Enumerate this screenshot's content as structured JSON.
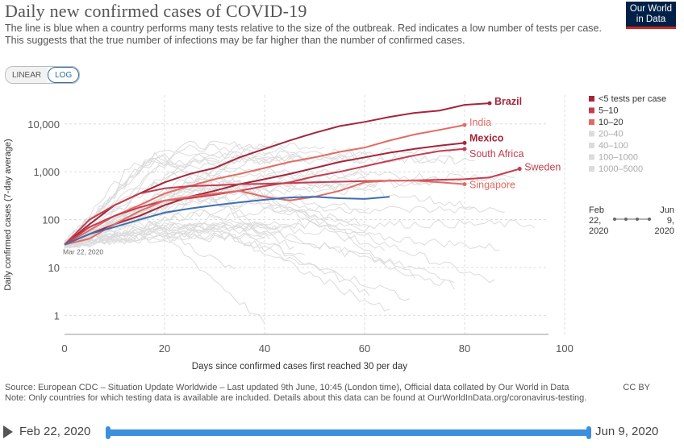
{
  "title": "Daily new confirmed cases of COVID-19",
  "subtitle": "The line is blue when a country performs many tests relative to the size of the outbreak. Red indicates a low number of tests per case. This suggests that the true number of infections may be far higher than the number of confirmed cases.",
  "logo": {
    "line1": "Our World",
    "line2": "in Data"
  },
  "scale_toggle": {
    "linear": "LINEAR",
    "log": "LOG",
    "selected": "LOG"
  },
  "colors": {
    "lt5": "#a3263a",
    "5to10": "#c43d4e",
    "10to20": "#e36a63",
    "grey": "#dcdcdc",
    "blue": "#3e6fb0"
  },
  "chart_data": {
    "type": "line",
    "xlabel": "Days since confirmed cases first reached 30 per day",
    "ylabel": "Daily confirmed cases (7-day average)",
    "xlim": [
      0,
      100
    ],
    "ylim": [
      0.4,
      40000
    ],
    "yscale": "log",
    "xticks": [
      0,
      20,
      40,
      60,
      80,
      100
    ],
    "xtick_labels": [
      "0",
      "20",
      "40",
      "60",
      "80",
      "100"
    ],
    "yticks": [
      1,
      10,
      100,
      1000,
      10000
    ],
    "ytick_labels": [
      "1",
      "10",
      "100",
      "1,000",
      "10,000"
    ],
    "start_annotation": "Mar 22, 2020",
    "legend": {
      "placement": "right",
      "entries": [
        {
          "label": "<5 tests per case",
          "color": "#a3263a"
        },
        {
          "label": "5–10",
          "color": "#c43d4e"
        },
        {
          "label": "10–20",
          "color": "#e36a63"
        },
        {
          "label": "20–40",
          "color": "#dcdcdc"
        },
        {
          "label": "40–100",
          "color": "#dcdcdc"
        },
        {
          "label": "100–1000",
          "color": "#dcdcdc"
        },
        {
          "label": "1000–5000",
          "color": "#dcdcdc"
        }
      ],
      "time_range": {
        "start_line1": "Feb",
        "start_line2": "22,",
        "start_line3": "2020",
        "end_line1": "Jun",
        "end_line2": "9,",
        "end_line3": "2020"
      }
    },
    "series": [
      {
        "name": "Brazil",
        "color": "#a3263a",
        "x": [
          0,
          5,
          10,
          15,
          20,
          25,
          30,
          35,
          40,
          45,
          50,
          55,
          60,
          65,
          70,
          75,
          80,
          85
        ],
        "y": [
          30,
          80,
          200,
          350,
          600,
          900,
          1200,
          2000,
          3000,
          4500,
          6500,
          9000,
          11000,
          14000,
          17000,
          19000,
          25000,
          27000
        ]
      },
      {
        "name": "India",
        "color": "#e36a63",
        "x": [
          0,
          5,
          10,
          15,
          20,
          25,
          30,
          35,
          40,
          45,
          50,
          55,
          60,
          65,
          70,
          75,
          80
        ],
        "y": [
          30,
          60,
          120,
          200,
          350,
          500,
          700,
          900,
          1200,
          1600,
          2000,
          2600,
          3200,
          4500,
          6000,
          7500,
          9500
        ]
      },
      {
        "name": "Mexico",
        "color": "#a3263a",
        "x": [
          0,
          5,
          10,
          15,
          20,
          25,
          30,
          35,
          40,
          45,
          50,
          55,
          60,
          65,
          70,
          75,
          80
        ],
        "y": [
          30,
          50,
          80,
          120,
          200,
          300,
          400,
          550,
          700,
          900,
          1200,
          1600,
          2000,
          2500,
          3000,
          3500,
          4000
        ]
      },
      {
        "name": "South Africa",
        "color": "#c43d4e",
        "x": [
          0,
          5,
          10,
          15,
          20,
          25,
          30,
          35,
          40,
          45,
          50,
          55,
          60,
          65,
          70,
          75,
          80
        ],
        "y": [
          30,
          70,
          120,
          180,
          250,
          280,
          330,
          400,
          500,
          600,
          800,
          1000,
          1300,
          1700,
          2200,
          2700,
          3000
        ]
      },
      {
        "name": "Sweden",
        "color": "#c43d4e",
        "x": [
          0,
          5,
          10,
          15,
          20,
          25,
          30,
          35,
          40,
          45,
          50,
          55,
          60,
          65,
          70,
          75,
          80,
          85,
          91
        ],
        "y": [
          30,
          100,
          200,
          350,
          450,
          500,
          520,
          550,
          560,
          580,
          600,
          620,
          640,
          650,
          660,
          680,
          700,
          760,
          1150
        ]
      },
      {
        "name": "Singapore",
        "color": "#e36a63",
        "x": [
          0,
          5,
          10,
          15,
          20,
          25,
          30,
          35,
          40,
          45,
          50,
          55,
          60,
          65,
          70,
          75,
          80
        ],
        "y": [
          30,
          40,
          80,
          150,
          250,
          300,
          350,
          400,
          300,
          250,
          300,
          400,
          600,
          650,
          650,
          600,
          550
        ]
      },
      {
        "name": "",
        "color": "#3e6fb0",
        "x": [
          0,
          5,
          10,
          15,
          20,
          25,
          30,
          35,
          40,
          45,
          50,
          55,
          60,
          65
        ],
        "y": [
          30,
          50,
          70,
          100,
          140,
          170,
          200,
          230,
          260,
          290,
          300,
          280,
          270,
          300
        ]
      }
    ]
  },
  "footer": {
    "source": "Source: European CDC – Situation Update Worldwide – Last updated 9th June, 10:45 (London time), Official data collated by Our World in Data",
    "note": "Note: Only countries for which testing data is available are included. Details about this data can be found at OurWorldInData.org/coronavirus-testing.",
    "license": "CC BY"
  },
  "timeline": {
    "start": "Feb 22, 2020",
    "end": "Jun 9, 2020"
  }
}
